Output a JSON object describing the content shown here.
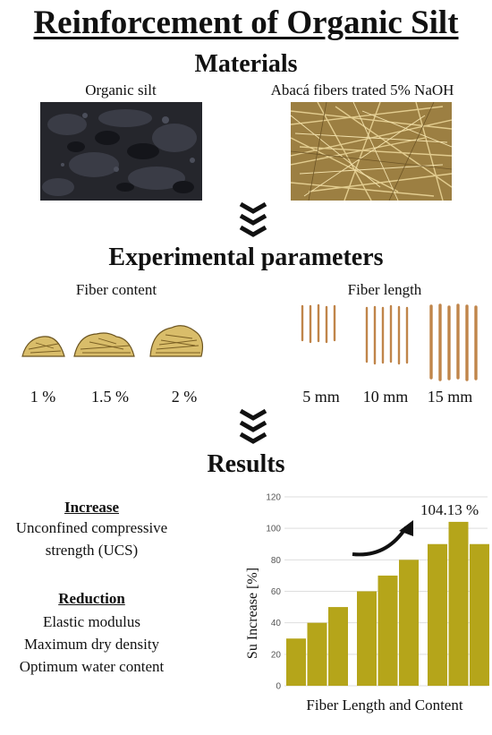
{
  "title": "Reinforcement of Organic Silt",
  "materials": {
    "heading": "Materials",
    "silt_label": "Organic silt",
    "fiber_label": "Abacá fibers trated 5% NaOH"
  },
  "parameters": {
    "heading": "Experimental parameters",
    "content_heading": "Fiber content",
    "content_values": [
      "1 %",
      "1.5 %",
      "2 %"
    ],
    "length_heading": "Fiber length",
    "length_values": [
      "5 mm",
      "10 mm",
      "15 mm"
    ]
  },
  "results": {
    "heading": "Results",
    "increase_heading": "Increase",
    "increase_items": [
      "Unconfined compressive",
      "strength (UCS)"
    ],
    "reduction_heading": "Reduction",
    "reduction_items": [
      "Elastic modulus",
      "Maximum dry density",
      "Optimum water content"
    ]
  },
  "colors": {
    "bar": "#b5a51a",
    "fiber": "#c0854a",
    "hay": "#d9bd6a",
    "silt": "#25262c"
  },
  "chart_data": {
    "type": "bar",
    "title": "",
    "xlabel": "Fiber Length and Content",
    "ylabel": "Su Increase [%]",
    "ylim": [
      0,
      120
    ],
    "yticks": [
      0,
      20,
      40,
      60,
      80,
      100,
      120
    ],
    "groups": [
      {
        "values": [
          30,
          40,
          50
        ]
      },
      {
        "values": [
          60,
          70,
          80
        ]
      },
      {
        "values": [
          90,
          104.13,
          90
        ]
      }
    ],
    "annotation": "104.13 %",
    "grid": true
  }
}
